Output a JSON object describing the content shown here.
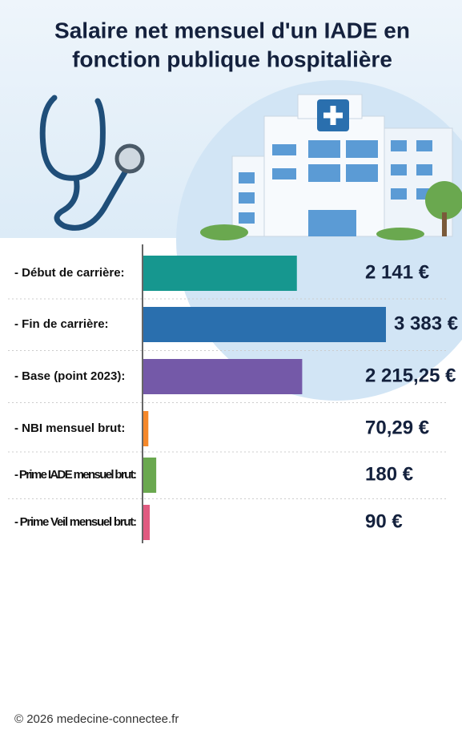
{
  "chart_data": {
    "type": "bar",
    "orientation": "horizontal",
    "title": "Salaire net mensuel d'un IADE en fonction publique hospitalière",
    "title_lines": [
      "Salaire net mensuel d'un IADE en",
      "fonction publique hospitalière"
    ],
    "categories": [
      "- Début de carrière:",
      "- Fin de carrière:",
      "- Base (point 2023):",
      "- NBI mensuel brut:",
      "- Prime IADE mensuel brut:",
      "- Prime Veil mensuel brut:"
    ],
    "values": [
      2141,
      3383,
      2215.25,
      70.29,
      180,
      90
    ],
    "value_labels": [
      "2 141 €",
      "3 383 €",
      "2 215,25 €",
      "70,29 €",
      "180 €",
      "90 €"
    ],
    "colors": [
      "#16978f",
      "#2a6fae",
      "#7459a8",
      "#f5882a",
      "#6aa84f",
      "#e05a80"
    ],
    "footer": "© 2026 medecine-connectee.fr"
  }
}
